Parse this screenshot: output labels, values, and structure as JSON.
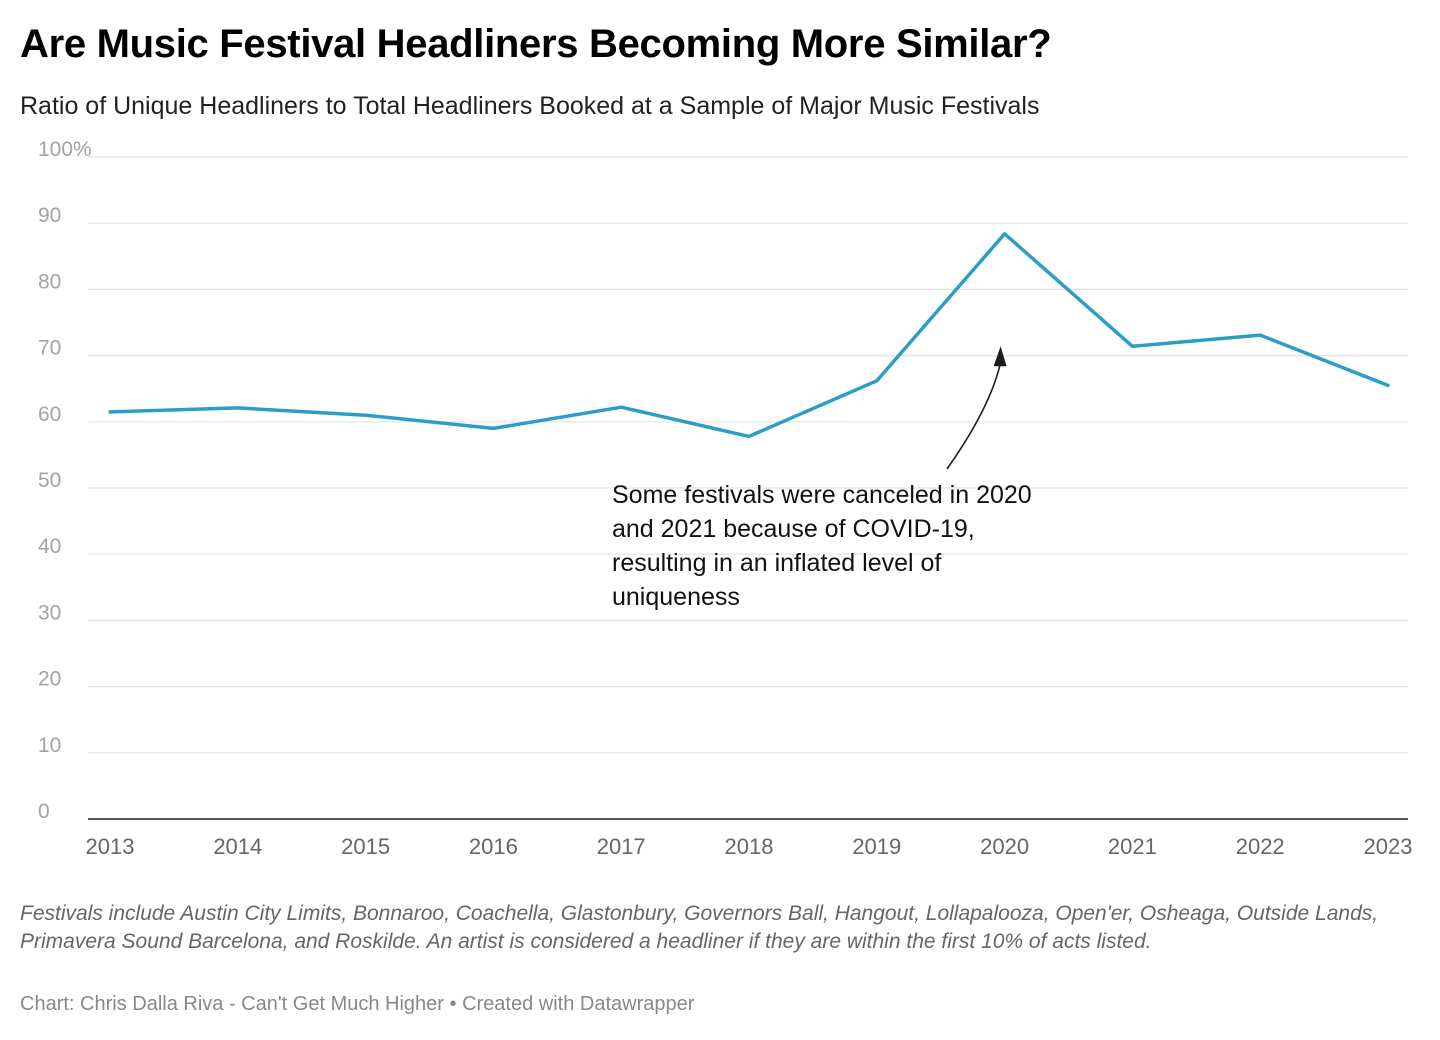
{
  "chart_data": {
    "type": "line",
    "title": "Are Music Festival Headliners Becoming More Similar?",
    "subtitle": "Ratio of Unique Headliners to Total Headliners Booked at a Sample of Major Music Festivals",
    "xlabel": "",
    "ylabel": "",
    "x": [
      "2013",
      "2014",
      "2015",
      "2016",
      "2017",
      "2018",
      "2019",
      "2020",
      "2021",
      "2022",
      "2023"
    ],
    "series": [
      {
        "values": [
          61.5,
          62.1,
          61.0,
          59.0,
          62.2,
          57.8,
          66.2,
          88.4,
          71.4,
          73.1,
          65.5
        ]
      }
    ],
    "ylim": [
      0,
      100
    ],
    "yticks": [
      0,
      10,
      20,
      30,
      40,
      50,
      60,
      70,
      80,
      90,
      100
    ],
    "ytick_labels": [
      "0",
      "10",
      "20",
      "30",
      "40",
      "50",
      "60",
      "70",
      "80",
      "90",
      "100%"
    ],
    "grid": true,
    "legend": "none",
    "line_color": "#2b9ec7",
    "annotation": {
      "text": "Some festivals were canceled in 2020 and 2021 because of COVID-19, resulting in an inflated level of uniqueness",
      "arrow_target_x": "2020",
      "arrow_target_y": 70.5
    },
    "notes": "Festivals include Austin City Limits, Bonnaroo, Coachella, Glastonbury, Governors Ball, Hangout, Lollapalooza, Open'er, Osheaga, Outside Lands, Primavera Sound Barcelona, and Roskilde. An artist is considered a headliner if they are within the first 10% of acts listed.",
    "credit": "Chart: Chris Dalla Riva - Can't Get Much Higher • Created with Datawrapper"
  }
}
